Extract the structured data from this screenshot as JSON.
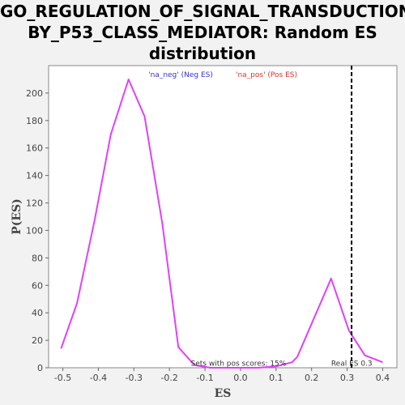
{
  "title_lines": [
    "GO_REGULATION_OF_SIGNAL_TRANSDUCTION_",
    "BY_P53_CLASS_MEDIATOR: Random ES",
    "distribution"
  ],
  "chart_data": {
    "type": "line",
    "xlabel": "ES",
    "ylabel": "P(ES)",
    "xlim": [
      -0.54,
      0.44
    ],
    "ylim": [
      0,
      220
    ],
    "x_ticks": [
      -0.5,
      -0.4,
      -0.3,
      -0.2,
      -0.1,
      0.0,
      0.1,
      0.2,
      0.3,
      0.4
    ],
    "x_tick_labels": [
      "-0.5",
      "-0.4",
      "-0.3",
      "-0.2",
      "-0.1",
      "0.0",
      "0.1",
      "0.2",
      "0.3",
      "0.4"
    ],
    "y_ticks": [
      0,
      20,
      40,
      60,
      80,
      100,
      120,
      140,
      160,
      180,
      200
    ],
    "y_tick_labels": [
      "0",
      "20",
      "40",
      "60",
      "80",
      "100",
      "120",
      "140",
      "160",
      "180",
      "200"
    ],
    "grid": false,
    "line_color": "#e040fb",
    "legend": [
      {
        "label": "'na_neg' (Neg ES)",
        "color": "#3333cc"
      },
      {
        "label": "'na_pos' (Pos ES)",
        "color": "#e03030"
      }
    ],
    "series": [
      {
        "x": [
          -0.505,
          -0.46,
          -0.41,
          -0.365,
          -0.315,
          -0.27,
          -0.22,
          -0.175,
          -0.13,
          -0.085,
          -0.04,
          0.0,
          0.05,
          0.1,
          0.145,
          0.16,
          0.2,
          0.255,
          0.305,
          0.35,
          0.4
        ],
        "values": [
          14,
          47,
          108,
          170,
          210,
          183,
          105,
          15,
          2,
          0,
          0,
          0,
          0,
          1,
          4,
          8,
          32,
          65,
          27,
          9,
          4
        ]
      }
    ],
    "reference_line": {
      "x": 0.3125,
      "color": "#000000",
      "style": "dashed"
    },
    "annotations": [
      {
        "text": "Sets with pos scores: 15%",
        "x": -0.14,
        "y": 1
      },
      {
        "text": "Real ES 0.3",
        "x": 0.255,
        "y": 1
      }
    ]
  }
}
